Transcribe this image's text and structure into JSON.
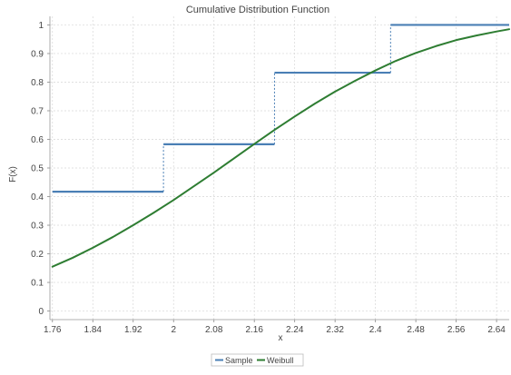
{
  "chart_data": {
    "type": "line",
    "title": "Cumulative Distribution Function",
    "xlabel": "x",
    "ylabel": "F(x)",
    "xlim": [
      1.755,
      2.665
    ],
    "ylim": [
      -0.03,
      1.03
    ],
    "x_ticks": [
      "1.76",
      "1.84",
      "1.92",
      "2",
      "2.08",
      "2.16",
      "2.24",
      "2.32",
      "2.4",
      "2.48",
      "2.56",
      "2.64"
    ],
    "y_ticks": [
      "0",
      "0.1",
      "0.2",
      "0.3",
      "0.4",
      "0.5",
      "0.6",
      "0.7",
      "0.8",
      "0.9",
      "1"
    ],
    "grid": true,
    "legend_position": "bottom-center",
    "series": [
      {
        "name": "Sample",
        "kind": "step",
        "color": "#4a7fb5",
        "x": [
          1.76,
          1.98,
          1.98,
          2.2,
          2.2,
          2.43,
          2.43,
          2.665
        ],
        "y": [
          0.417,
          0.417,
          0.583,
          0.583,
          0.833,
          0.833,
          1.0,
          1.0
        ]
      },
      {
        "name": "Weibull",
        "kind": "line",
        "color": "#2e7d32",
        "x": [
          1.76,
          1.8,
          1.84,
          1.88,
          1.92,
          1.96,
          2.0,
          2.04,
          2.08,
          2.12,
          2.16,
          2.2,
          2.24,
          2.28,
          2.32,
          2.36,
          2.4,
          2.44,
          2.48,
          2.52,
          2.56,
          2.6,
          2.64,
          2.665
        ],
        "y": [
          0.155,
          0.186,
          0.221,
          0.259,
          0.3,
          0.343,
          0.388,
          0.436,
          0.484,
          0.534,
          0.584,
          0.633,
          0.68,
          0.725,
          0.767,
          0.805,
          0.841,
          0.874,
          0.902,
          0.926,
          0.947,
          0.963,
          0.977,
          0.985
        ]
      }
    ]
  }
}
